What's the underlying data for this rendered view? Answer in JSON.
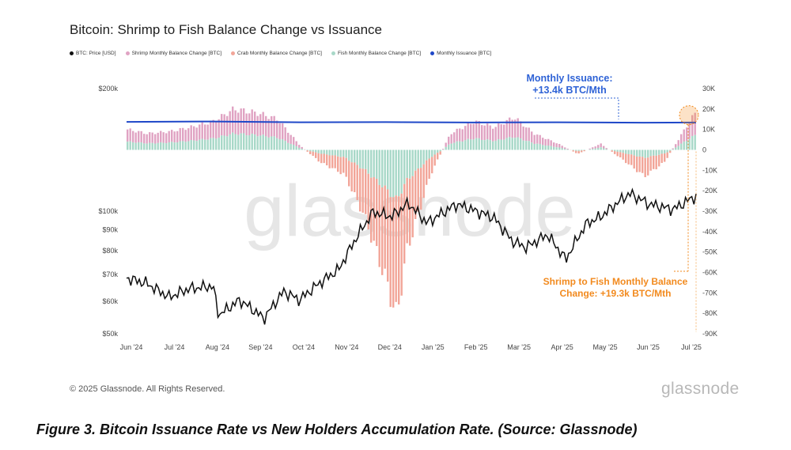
{
  "title": "Bitcoin: Shrimp to Fish Balance Change vs Issuance",
  "watermark": "glassnode",
  "footer": {
    "copyright": "© 2025 Glassnode. All Rights Reserved.",
    "brand": "glassnode"
  },
  "caption": "Figure 3.  Bitcoin Issuance Rate vs New Holders Accumulation Rate. (Source: Glassnode)",
  "annotations": {
    "issuance_line1": "Monthly Issuance:",
    "issuance_line2": "+13.4k BTC/Mth",
    "shrimp_line1": "Shrimp to Fish Monthly Balance",
    "shrimp_line2": "Change: +19.3k BTC/Mth"
  },
  "colors": {
    "price": "#111111",
    "shrimp": "#e0a3c3",
    "crab": "#f2a598",
    "fish": "#a8d8c8",
    "issuance": "#1f48c8",
    "annotation_orange": "#f28a1e",
    "annotation_blue": "#2f63d6"
  },
  "chart_data": {
    "type": "bar+line",
    "legend": [
      {
        "label": "BTC: Price [USD]",
        "color": "#111111"
      },
      {
        "label": "Shrimp Monthly Balance Change [BTC]",
        "color": "#e0a3c3"
      },
      {
        "label": "Crab Monthly Balance Change [BTC]",
        "color": "#f2a598"
      },
      {
        "label": "Fish Monthly Balance Change [BTC]",
        "color": "#a8d8c8"
      },
      {
        "label": "Monthly Issuance [BTC]",
        "color": "#1f48c8"
      }
    ],
    "x_labels": [
      "Jun '24",
      "Jul '24",
      "Aug '24",
      "Sep '24",
      "Oct '24",
      "Nov '24",
      "Dec '24",
      "Jan '25",
      "Feb '25",
      "Mar '25",
      "Apr '25",
      "May '25",
      "Jun '25",
      "Jul '25"
    ],
    "x_range": [
      "2024-06-01",
      "2025-07-08"
    ],
    "y_left": {
      "scale": "log",
      "range": [
        50000,
        200000
      ],
      "ticks": [
        200000,
        100000,
        90000,
        80000,
        70000,
        60000,
        50000
      ],
      "tick_labels": [
        "$200k",
        "$100k",
        "$90k",
        "$80k",
        "$70k",
        "$60k",
        "$50k"
      ]
    },
    "y_right": {
      "range": [
        -90000,
        30000
      ],
      "ticks": [
        30000,
        20000,
        10000,
        0,
        -10000,
        -20000,
        -30000,
        -40000,
        -50000,
        -60000,
        -70000,
        -80000,
        -90000
      ],
      "tick_labels": [
        "30K",
        "20K",
        "10K",
        "0",
        "-10K",
        "-20K",
        "-30K",
        "-40K",
        "-50K",
        "-60K",
        "-70K",
        "-80K",
        "-90K"
      ]
    },
    "price_series": {
      "name": "BTC: Price [USD]",
      "dates": [
        "2024-06-01",
        "2024-06-15",
        "2024-07-01",
        "2024-07-15",
        "2024-08-01",
        "2024-08-05",
        "2024-08-20",
        "2024-09-06",
        "2024-09-20",
        "2024-10-01",
        "2024-10-15",
        "2024-10-29",
        "2024-11-12",
        "2024-11-22",
        "2024-12-05",
        "2024-12-17",
        "2024-12-30",
        "2025-01-20",
        "2025-02-01",
        "2025-02-15",
        "2025-02-28",
        "2025-03-10",
        "2025-03-25",
        "2025-04-07",
        "2025-04-22",
        "2025-05-01",
        "2025-05-22",
        "2025-06-05",
        "2025-06-22",
        "2025-07-08"
      ],
      "values": [
        68500,
        66500,
        61500,
        64500,
        65500,
        55500,
        60500,
        54500,
        63500,
        60500,
        66500,
        72000,
        88000,
        99500,
        97000,
        104500,
        93500,
        104000,
        100500,
        96500,
        84500,
        81500,
        87500,
        76000,
        93500,
        96500,
        110500,
        104000,
        101000,
        109000
      ]
    },
    "issuance_series": {
      "name": "Monthly Issuance [BTC]",
      "dates": [
        "2024-06-01",
        "2024-08-01",
        "2024-10-01",
        "2024-12-01",
        "2025-02-01",
        "2025-04-01",
        "2025-06-01",
        "2025-07-08"
      ],
      "values": [
        13700,
        13900,
        13500,
        13600,
        13400,
        13500,
        13300,
        13400
      ]
    },
    "balance_change_series": {
      "names": [
        "Shrimp Monthly Balance Change [BTC]",
        "Crab Monthly Balance Change [BTC]",
        "Fish Monthly Balance Change [BTC]"
      ],
      "dates": [
        "2024-06-01",
        "2024-06-15",
        "2024-07-01",
        "2024-07-15",
        "2024-08-01",
        "2024-08-15",
        "2024-09-01",
        "2024-09-15",
        "2024-10-01",
        "2024-10-15",
        "2024-11-01",
        "2024-11-15",
        "2024-12-01",
        "2024-12-08",
        "2024-12-15",
        "2025-01-01",
        "2025-01-15",
        "2025-02-01",
        "2025-02-15",
        "2025-03-01",
        "2025-03-15",
        "2025-04-01",
        "2025-04-15",
        "2025-05-01",
        "2025-05-15",
        "2025-06-01",
        "2025-06-15",
        "2025-07-01",
        "2025-07-08"
      ],
      "totals": [
        10000,
        8000,
        9000,
        11000,
        14000,
        20000,
        18000,
        15000,
        2000,
        -6000,
        -12000,
        -32000,
        -65000,
        -82000,
        -50000,
        -12000,
        8000,
        14000,
        11000,
        16000,
        8000,
        3000,
        -2000,
        3000,
        -4000,
        -13000,
        -6000,
        12000,
        19300
      ],
      "negative_crab_fraction": 0.7,
      "positive_shrimp_fraction": 0.6
    }
  }
}
